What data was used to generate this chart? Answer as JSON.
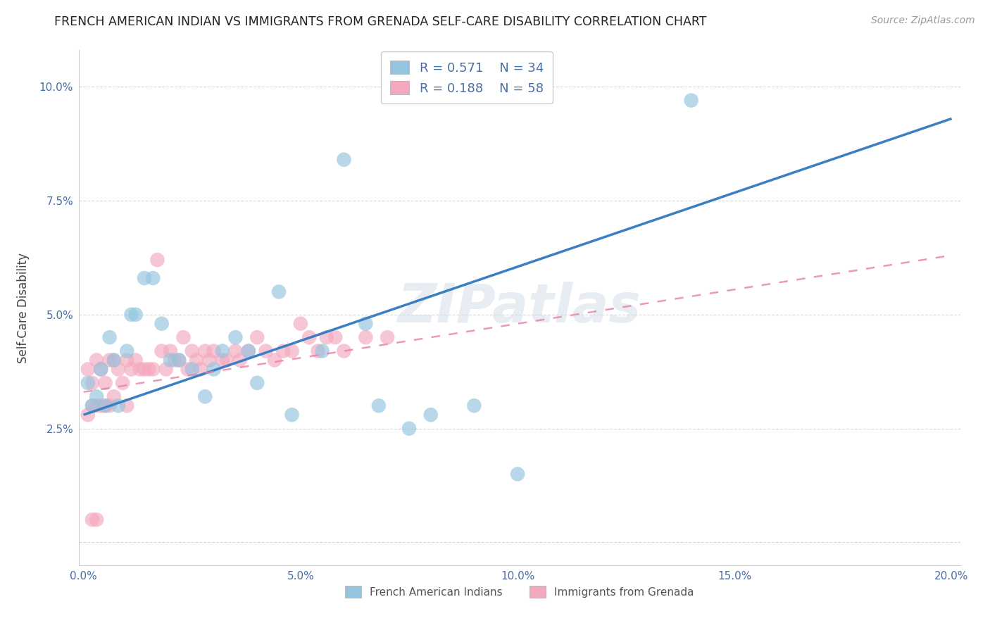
{
  "title": "FRENCH AMERICAN INDIAN VS IMMIGRANTS FROM GRENADA SELF-CARE DISABILITY CORRELATION CHART",
  "source": "Source: ZipAtlas.com",
  "ylabel": "Self-Care Disability",
  "xlim": [
    -0.001,
    0.202
  ],
  "ylim": [
    -0.005,
    0.108
  ],
  "xticks": [
    0.0,
    0.05,
    0.1,
    0.15,
    0.2
  ],
  "xticklabels": [
    "0.0%",
    "5.0%",
    "10.0%",
    "15.0%",
    "20.0%"
  ],
  "yticks": [
    0.0,
    0.025,
    0.05,
    0.075,
    0.1
  ],
  "yticklabels": [
    "",
    "2.5%",
    "5.0%",
    "7.5%",
    "10.0%"
  ],
  "color_blue": "#93c4e0",
  "color_pink": "#f4a8be",
  "color_blue_line": "#3a7fc1",
  "color_pink_line": "#e87fa8",
  "watermark": "ZIPatlas",
  "blue_line_x0": 0.0,
  "blue_line_y0": 0.028,
  "blue_line_x1": 0.2,
  "blue_line_y1": 0.093,
  "pink_line_x0": 0.0,
  "pink_line_y0": 0.033,
  "pink_line_x1": 0.2,
  "pink_line_y1": 0.063,
  "blue_x": [
    0.001,
    0.002,
    0.003,
    0.004,
    0.005,
    0.006,
    0.007,
    0.008,
    0.01,
    0.011,
    0.012,
    0.014,
    0.016,
    0.018,
    0.02,
    0.022,
    0.025,
    0.028,
    0.03,
    0.032,
    0.035,
    0.038,
    0.04,
    0.045,
    0.048,
    0.055,
    0.06,
    0.065,
    0.068,
    0.075,
    0.08,
    0.09,
    0.1,
    0.14
  ],
  "blue_y": [
    0.035,
    0.03,
    0.032,
    0.038,
    0.03,
    0.045,
    0.04,
    0.03,
    0.042,
    0.05,
    0.05,
    0.058,
    0.058,
    0.048,
    0.04,
    0.04,
    0.038,
    0.032,
    0.038,
    0.042,
    0.045,
    0.042,
    0.035,
    0.055,
    0.028,
    0.042,
    0.084,
    0.048,
    0.03,
    0.025,
    0.028,
    0.03,
    0.015,
    0.097
  ],
  "pink_x": [
    0.001,
    0.001,
    0.002,
    0.002,
    0.003,
    0.003,
    0.004,
    0.004,
    0.005,
    0.005,
    0.006,
    0.006,
    0.007,
    0.007,
    0.008,
    0.009,
    0.01,
    0.01,
    0.011,
    0.012,
    0.013,
    0.014,
    0.015,
    0.016,
    0.017,
    0.018,
    0.019,
    0.02,
    0.021,
    0.022,
    0.023,
    0.024,
    0.025,
    0.026,
    0.027,
    0.028,
    0.029,
    0.03,
    0.032,
    0.033,
    0.035,
    0.036,
    0.038,
    0.04,
    0.042,
    0.044,
    0.046,
    0.048,
    0.05,
    0.052,
    0.054,
    0.056,
    0.058,
    0.06,
    0.065,
    0.07,
    0.002,
    0.003
  ],
  "pink_y": [
    0.038,
    0.028,
    0.035,
    0.03,
    0.04,
    0.03,
    0.038,
    0.03,
    0.035,
    0.03,
    0.04,
    0.03,
    0.04,
    0.032,
    0.038,
    0.035,
    0.04,
    0.03,
    0.038,
    0.04,
    0.038,
    0.038,
    0.038,
    0.038,
    0.062,
    0.042,
    0.038,
    0.042,
    0.04,
    0.04,
    0.045,
    0.038,
    0.042,
    0.04,
    0.038,
    0.042,
    0.04,
    0.042,
    0.04,
    0.04,
    0.042,
    0.04,
    0.042,
    0.045,
    0.042,
    0.04,
    0.042,
    0.042,
    0.048,
    0.045,
    0.042,
    0.045,
    0.045,
    0.042,
    0.045,
    0.045,
    0.005,
    0.005
  ]
}
